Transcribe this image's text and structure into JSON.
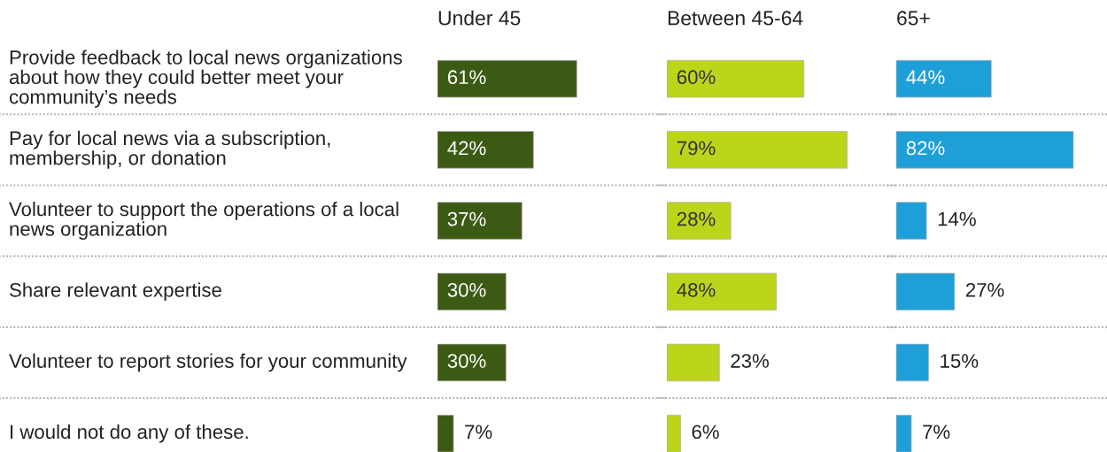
{
  "chart_data": [
    {
      "type": "bar",
      "orientation": "horizontal",
      "title": "Under 45",
      "categories": [
        "Provide feedback to local news organizations about how they could better meet your community’s needs",
        "Pay for local news via a subscription, membership, or donation",
        "Volunteer to support the operations of a local news organization",
        "Share relevant expertise",
        "Volunteer to report stories for your community",
        "I would not do any of these."
      ],
      "values": [
        61,
        42,
        37,
        30,
        30,
        7
      ],
      "value_labels": [
        "61%",
        "42%",
        "37%",
        "30%",
        "30%",
        "7%"
      ],
      "color": "#3d5a15",
      "grid": "y",
      "tick_labels": "y"
    },
    {
      "type": "bar",
      "orientation": "horizontal",
      "title": "Between 45-64",
      "values": [
        60,
        79,
        28,
        48,
        23,
        6
      ],
      "value_labels": [
        "60%",
        "79%",
        "28%",
        "48%",
        "23%",
        "6%"
      ],
      "color": "#bcd41a",
      "grid": "y",
      "tick_labels": false
    },
    {
      "type": "bar",
      "orientation": "horizontal",
      "title": "65+",
      "values": [
        44,
        82,
        14,
        27,
        15,
        7
      ],
      "value_labels": [
        "44%",
        "82%",
        "14%",
        "27%",
        "15%",
        "7%"
      ],
      "color": "#1f9fd8",
      "grid": "y",
      "tick_labels": false
    }
  ]
}
